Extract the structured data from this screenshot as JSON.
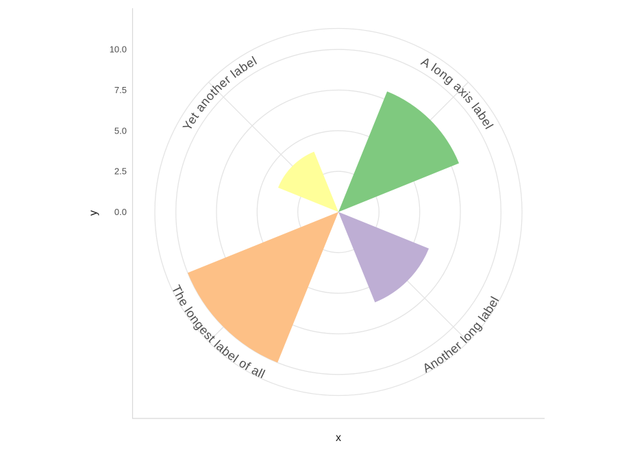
{
  "chart_data": {
    "type": "bar",
    "coord": "polar",
    "title": "",
    "categories": [
      "A long axis label",
      "Another long label",
      "The longest label of all",
      "Yet another label"
    ],
    "values": [
      8,
      6,
      10,
      4
    ],
    "bar_colors": [
      "#7FC97F",
      "#BEAED4",
      "#FDC086",
      "#FFFF99"
    ],
    "xlabel": "x",
    "ylabel": "y",
    "y_ticks": [
      0.0,
      2.5,
      5.0,
      7.5,
      10.0
    ],
    "y_tick_labels": [
      "0.0",
      "2.5",
      "5.0",
      "7.5",
      "10.0"
    ],
    "ylim": [
      0,
      11.3
    ],
    "grid": true,
    "legend": "none",
    "category_center_angles_deg": [
      45,
      135,
      225,
      315
    ],
    "wedge_width_deg": 46,
    "style": {
      "background_color": "#ffffff",
      "grid_color": "#e4e4e4",
      "axis_line_color": "#d8d8d8",
      "tick_text_color": "#4d4d4d",
      "category_label_color": "#4d4d4d",
      "axis_title_color": "#1a1a1a"
    }
  }
}
